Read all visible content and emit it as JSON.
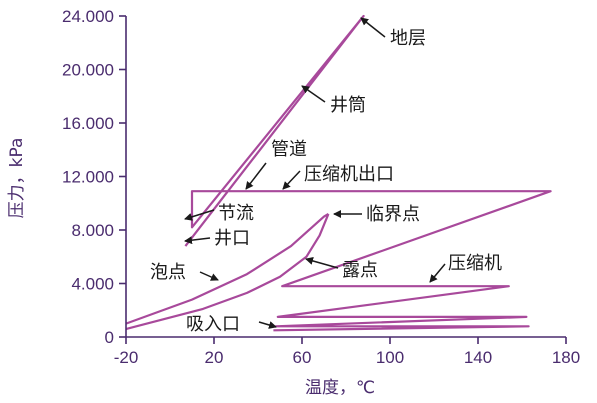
{
  "chart_data": {
    "type": "line",
    "xlabel": "温度，℃",
    "ylabel": "压力，kPa",
    "xlim": [
      -20,
      180
    ],
    "ylim": [
      0,
      24
    ],
    "xticks": [
      "-20",
      "20",
      "60",
      "100",
      "140",
      "180"
    ],
    "yticks": [
      "0",
      "4.000",
      "8.000",
      "12.000",
      "16.000",
      "20.000",
      "24.000"
    ],
    "series": [
      {
        "points": [
          [
            7,
            6.8
          ],
          [
            88,
            24
          ],
          [
            10,
            8.2
          ],
          [
            10,
            10.9
          ],
          [
            173,
            10.9
          ],
          [
            51,
            3.8
          ],
          [
            154,
            3.8
          ],
          [
            49,
            1.5
          ],
          [
            162,
            1.5
          ],
          [
            48,
            0.8
          ],
          [
            163,
            0.8
          ],
          [
            47,
            0.5
          ]
        ]
      },
      {
        "points": [
          [
            -20,
            1.0
          ],
          [
            10,
            2.8
          ],
          [
            35,
            4.7
          ],
          [
            55,
            6.8
          ],
          [
            70,
            9.0
          ],
          [
            72,
            9.2
          ]
        ]
      },
      {
        "points": [
          [
            -20,
            0.6
          ],
          [
            15,
            2.1
          ],
          [
            35,
            3.3
          ],
          [
            50,
            4.5
          ],
          [
            62,
            6.0
          ],
          [
            68,
            7.6
          ],
          [
            72,
            9.2
          ]
        ]
      }
    ],
    "annotations": [
      "地层",
      "井筒",
      "管道",
      "压缩机出口",
      "节流",
      "井口",
      "临界点",
      "泡点",
      "露点",
      "压缩机",
      "吸入口"
    ]
  },
  "colors": {
    "curve": "#a8499b",
    "axis": "#4a2c6e",
    "text": "#1a1a1a"
  }
}
